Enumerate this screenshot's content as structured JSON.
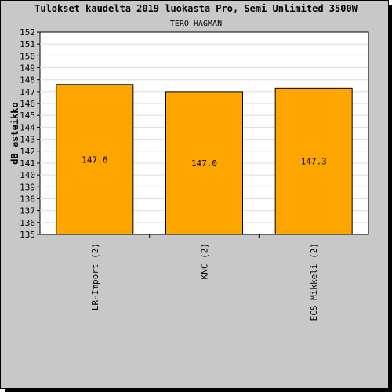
{
  "chart_data": {
    "type": "bar",
    "title": "Tulokset kaudelta 2019 luokasta Pro, Semi Unlimited 3500W",
    "subtitle": "TERO HAGMAN",
    "ylabel": "dB asteikko",
    "xlabel": "",
    "categories": [
      "LR-Import (2)",
      "KNC (2)",
      "ECS Mikkeli (2)"
    ],
    "values": [
      147.6,
      147.0,
      147.3
    ],
    "value_labels": [
      "147.6",
      "147.0",
      "147.3"
    ],
    "ylim": [
      135,
      152
    ],
    "yticks": [
      "135",
      "136",
      "137",
      "138",
      "139",
      "140",
      "141",
      "142",
      "143",
      "144",
      "145",
      "146",
      "147",
      "148",
      "149",
      "150",
      "151",
      "152"
    ],
    "grid": true,
    "legend": "none",
    "colors": {
      "bar": "#ffa500",
      "background": "#c8c8c8",
      "plot": "#ffffff",
      "grid": "#dcdcdc"
    }
  }
}
